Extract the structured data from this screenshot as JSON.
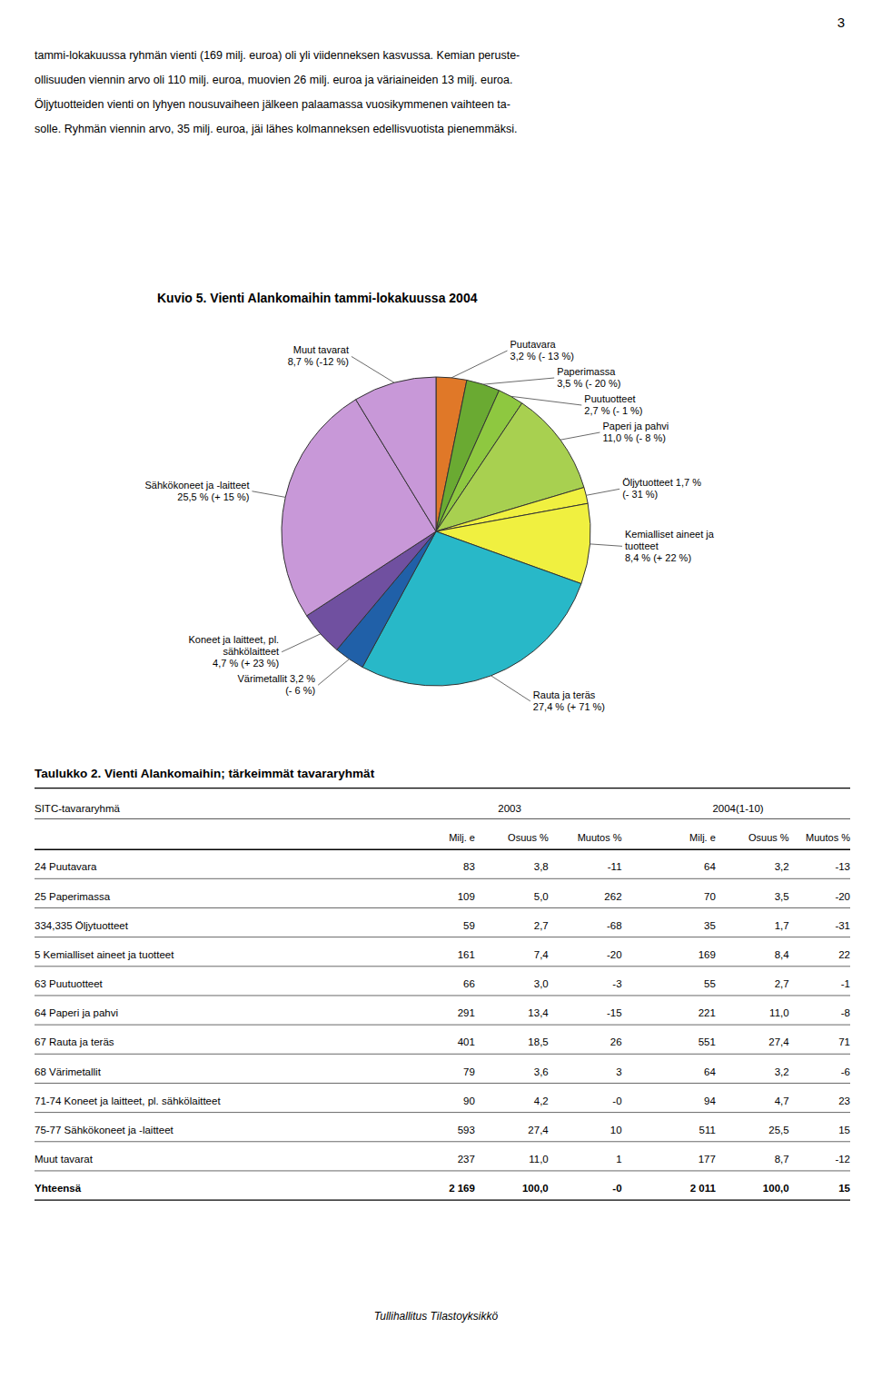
{
  "chart_data": {
    "type": "pie",
    "title": "Kuvio 5. Vienti Alankomaihin tammi-lokakuussa 2004",
    "categories": [
      "Puutavara\n3,2 % (- 13 %)",
      "Paperimassa\n3,5 % (- 20 %)",
      "Puutuotteet\n2,7 % (- 1 %)",
      "Paperi ja pahvi\n11,0 % (- 8 %)",
      "Öljytuotteet 1,7 %\n(- 31 %)",
      "Kemialliset aineet ja\ntuotteet\n8,4 % (+ 22 %)",
      "Rauta ja teräs\n27,4 % (+ 71 %)",
      "Värimetallit 3,2 %\n(- 6 %)",
      "Koneet ja laitteet, pl.\nsähkölaitteet\n4,7 % (+ 23 %)",
      "Sähkökoneet ja -laitteet\n25,5 % (+ 15 %)",
      "Muut tavarat\n8,7 % (-12 %)"
    ],
    "values": [
      3.2,
      3.5,
      2.7,
      11.0,
      1.7,
      8.4,
      27.4,
      3.2,
      4.7,
      25.5,
      8.7
    ],
    "colors": [
      "#e07828",
      "#6aaa32",
      "#8ec840",
      "#a8d050",
      "#f0f040",
      "#f0f040",
      "#28b8c8",
      "#2060a8",
      "#7050a0",
      "#c898d8",
      "#c898d8"
    ]
  },
  "page_number": "3",
  "intro_text": [
    "tammi-lokakuussa ryhmän vienti (169 milj. euroa) oli yli viidenneksen kasvussa. Kemian peruste-",
    "ollisuuden viennin arvo oli 110 milj. euroa, muovien 26 milj. euroa ja väriaineiden 13 milj. euroa.",
    "Öljytuotteiden vienti on lyhyen nousuvaiheen jälkeen palaamassa vuosikymmenen vaihteen ta-",
    "solle. Ryhmän viennin arvo, 35 milj. euroa, jäi lähes kolmanneksen edellisvuotista pienemmäksi."
  ],
  "table": {
    "title": "Taulukko 2. Vienti Alankomaihin; tärkeimmät tavararyhmät",
    "header1": [
      "SITC-tavararyhmä",
      "2003",
      "2004(1-10)"
    ],
    "header2": [
      "Milj. e",
      "Osuus %",
      "Muutos %",
      "Milj. e",
      "Osuus %",
      "Muutos %"
    ],
    "rows": [
      [
        "24 Puutavara",
        "83",
        "3,8",
        "-11",
        "64",
        "3,2",
        "-13"
      ],
      [
        "25 Paperimassa",
        "109",
        "5,0",
        "262",
        "70",
        "3,5",
        "-20"
      ],
      [
        "334,335 Öljytuotteet",
        "59",
        "2,7",
        "-68",
        "35",
        "1,7",
        "-31"
      ],
      [
        "5 Kemialliset aineet ja tuotteet",
        "161",
        "7,4",
        "-20",
        "169",
        "8,4",
        "22"
      ],
      [
        "63 Puutuotteet",
        "66",
        "3,0",
        "-3",
        "55",
        "2,7",
        "-1"
      ],
      [
        "64 Paperi ja pahvi",
        "291",
        "13,4",
        "-15",
        "221",
        "11,0",
        "-8"
      ],
      [
        "67 Rauta ja teräs",
        "401",
        "18,5",
        "26",
        "551",
        "27,4",
        "71"
      ],
      [
        "68 Värimetallit",
        "79",
        "3,6",
        "3",
        "64",
        "3,2",
        "-6"
      ],
      [
        "71-74 Koneet ja laitteet, pl. sähkölaitteet",
        "90",
        "4,2",
        "-0",
        "94",
        "4,7",
        "23"
      ],
      [
        "75-77 Sähkökoneet ja -laitteet",
        "593",
        "27,4",
        "10",
        "511",
        "25,5",
        "15"
      ],
      [
        "Muut tavarat",
        "237",
        "11,0",
        "1",
        "177",
        "8,7",
        "-12"
      ],
      [
        "Yhteensä",
        "2 169",
        "100,0",
        "-0",
        "2 011",
        "100,0",
        "15"
      ]
    ]
  },
  "footer": "Tullihallitus Tilastoyksikkö"
}
